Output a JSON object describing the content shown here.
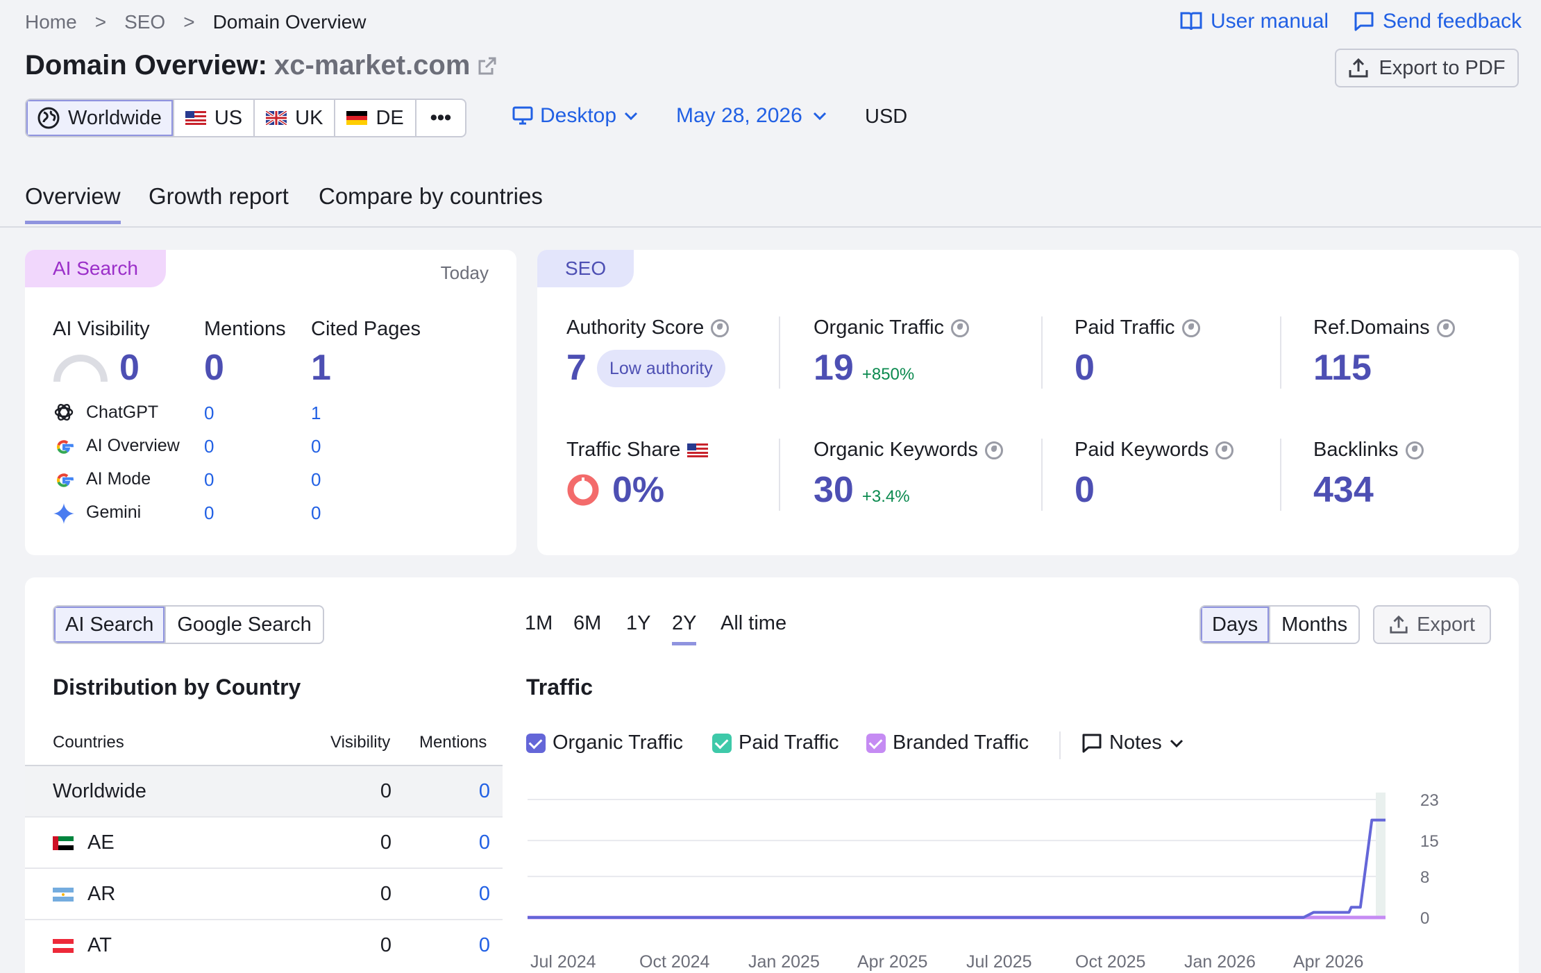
{
  "breadcrumb": {
    "home": "Home",
    "seo": "SEO",
    "current": "Domain Overview",
    "sep": ">"
  },
  "header": {
    "title_prefix": "Domain Overview:",
    "domain": "xc-market.com",
    "user_manual": "User manual",
    "send_feedback": "Send feedback",
    "export_pdf": "Export to PDF"
  },
  "regions": {
    "worldwide": "Worldwide",
    "us": "US",
    "uk": "UK",
    "de": "DE",
    "more": "•••"
  },
  "filters": {
    "device": "Desktop",
    "date": "May 28, 2026",
    "currency": "USD"
  },
  "tabs": [
    "Overview",
    "Growth report",
    "Compare by countries"
  ],
  "ai_panel": {
    "tag": "AI Search",
    "today": "Today",
    "headers": {
      "visibility": "AI Visibility",
      "mentions": "Mentions",
      "cited": "Cited Pages"
    },
    "totals": {
      "visibility": "0",
      "mentions": "0",
      "cited": "1"
    },
    "sources": [
      {
        "name": "ChatGPT",
        "mentions": "0",
        "cited": "1"
      },
      {
        "name": "AI Overview",
        "mentions": "0",
        "cited": "0"
      },
      {
        "name": "AI Mode",
        "mentions": "0",
        "cited": "0"
      },
      {
        "name": "Gemini",
        "mentions": "0",
        "cited": "0"
      }
    ]
  },
  "seo_panel": {
    "tag": "SEO",
    "authority_label": "Authority Score",
    "authority_value": "7",
    "authority_badge": "Low authority",
    "organic_traffic_label": "Organic Traffic",
    "organic_traffic_value": "19",
    "organic_traffic_change": "+850%",
    "paid_traffic_label": "Paid Traffic",
    "paid_traffic_value": "0",
    "ref_domains_label": "Ref.Domains",
    "ref_domains_value": "115",
    "traffic_share_label": "Traffic Share",
    "traffic_share_value": "0%",
    "organic_kw_label": "Organic Keywords",
    "organic_kw_value": "30",
    "organic_kw_change": "+3.4%",
    "paid_kw_label": "Paid Keywords",
    "paid_kw_value": "0",
    "backlinks_label": "Backlinks",
    "backlinks_value": "434"
  },
  "bottom": {
    "search_toggle": [
      "AI Search",
      "Google Search"
    ],
    "periods": [
      "1M",
      "6M",
      "1Y",
      "2Y",
      "All time"
    ],
    "active_period": "2Y",
    "granularity": [
      "Days",
      "Months"
    ],
    "export": "Export",
    "distribution_title": "Distribution by Country",
    "col_countries": "Countries",
    "col_visibility": "Visibility",
    "col_mentions": "Mentions",
    "countries": [
      {
        "name": "Worldwide",
        "visibility": "0",
        "mentions": "0"
      },
      {
        "name": "AE",
        "visibility": "0",
        "mentions": "0"
      },
      {
        "name": "AR",
        "visibility": "0",
        "mentions": "0"
      },
      {
        "name": "AT",
        "visibility": "0",
        "mentions": "0"
      }
    ],
    "traffic_title": "Traffic",
    "legend": {
      "organic": "Organic Traffic",
      "paid": "Paid Traffic",
      "branded": "Branded Traffic",
      "notes": "Notes"
    }
  },
  "colors": {
    "organic": "#6466d8",
    "paid": "#3ec9a9",
    "branded": "#c58bf3",
    "accent": "#2160e4"
  },
  "chart_data": {
    "type": "line",
    "x": [
      "Jul 2024",
      "Oct 2024",
      "Jan 2025",
      "Apr 2025",
      "Jul 2025",
      "Oct 2025",
      "Jan 2026",
      "Apr 2026"
    ],
    "y_ticks": [
      "23",
      "15",
      "8",
      "0"
    ],
    "ylim": [
      0,
      23
    ],
    "series": [
      {
        "name": "Organic Traffic",
        "points": [
          [
            0,
            0
          ],
          [
            680,
            0
          ],
          [
            689,
            1
          ],
          [
            720,
            1
          ],
          [
            722,
            2
          ],
          [
            730,
            2
          ],
          [
            740,
            19
          ],
          [
            752,
            19
          ]
        ]
      },
      {
        "name": "Branded Traffic",
        "points": [
          [
            0,
            0
          ],
          [
            752,
            0
          ]
        ]
      }
    ]
  }
}
